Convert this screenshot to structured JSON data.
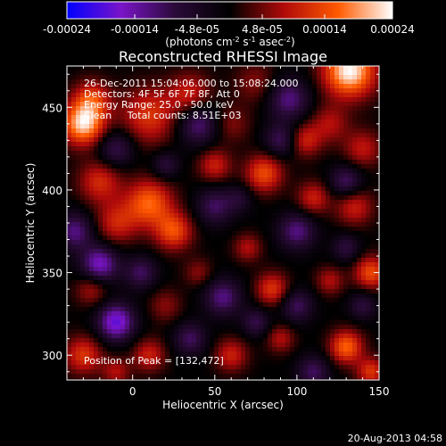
{
  "colorbar": {
    "ticks": [
      "-0.00024",
      "-0.00014",
      "-4.8e-05",
      "4.8e-05",
      "0.00014",
      "0.00024"
    ],
    "tick_values": [
      -0.00024,
      -0.00014,
      -4.8e-05,
      4.8e-05,
      0.00014,
      0.00024
    ],
    "range": [
      -0.00024,
      0.00024
    ],
    "label": "(photons cm^-2 s^-1 asec^-2)",
    "colors": [
      "#0000ff",
      "#7a14c8",
      "#2a0a38",
      "#000000",
      "#b00a0a",
      "#ff5a00",
      "#ffffff"
    ]
  },
  "chart_data": {
    "type": "heatmap",
    "title": "Reconstructed RHESSI Image",
    "xlabel": "Heliocentric X (arcsec)",
    "ylabel": "Heliocentric Y (arcsec)",
    "xlim": [
      -40,
      150
    ],
    "ylim": [
      285,
      475
    ],
    "x_ticks": [
      0,
      50,
      100,
      150
    ],
    "x_tick_labels": [
      "0",
      "50",
      "100",
      "150"
    ],
    "y_ticks": [
      300,
      350,
      400,
      450
    ],
    "y_tick_labels": [
      "300",
      "350",
      "400",
      "450"
    ],
    "grid": false,
    "info_lines": [
      "26-Dec-2011 15:04:06.000 to 15:08:24.000",
      "Detectors: 4F 5F 6F 7F 8F, Att 0",
      "Energy Range: 25.0 - 50.0 keV",
      "Clean     Total counts: 8.51E+03"
    ],
    "peak_annotation": "Position of Peak = [132,472]",
    "peak": [
      132,
      472
    ],
    "blobs": [
      [
        132,
        472,
        0.00024,
        11
      ],
      [
        -30,
        440,
        0.00022,
        9
      ],
      [
        -25,
        455,
        0.00012,
        8
      ],
      [
        10,
        445,
        0.00012,
        12
      ],
      [
        35,
        458,
        0.0001,
        9
      ],
      [
        75,
        465,
        6e-05,
        9
      ],
      [
        60,
        440,
        6e-05,
        8
      ],
      [
        120,
        440,
        8e-05,
        8
      ],
      [
        105,
        430,
        0.0001,
        7
      ],
      [
        140,
        425,
        9e-05,
        8
      ],
      [
        -20,
        405,
        0.00011,
        9
      ],
      [
        10,
        392,
        0.00016,
        10
      ],
      [
        -10,
        380,
        0.0001,
        9
      ],
      [
        25,
        375,
        0.00014,
        8
      ],
      [
        50,
        415,
        0.0001,
        7
      ],
      [
        80,
        410,
        0.00014,
        8
      ],
      [
        110,
        395,
        0.0001,
        7
      ],
      [
        135,
        390,
        0.0001,
        8
      ],
      [
        70,
        365,
        8e-05,
        6
      ],
      [
        85,
        340,
        0.00012,
        7
      ],
      [
        120,
        345,
        8e-05,
        6
      ],
      [
        145,
        350,
        0.00014,
        7
      ],
      [
        -25,
        340,
        8e-05,
        7
      ],
      [
        20,
        330,
        6e-05,
        7
      ],
      [
        -30,
        300,
        0.00012,
        8
      ],
      [
        10,
        300,
        0.0001,
        7
      ],
      [
        -10,
        290,
        8e-05,
        6
      ],
      [
        60,
        300,
        0.0001,
        7
      ],
      [
        90,
        310,
        8e-05,
        6
      ],
      [
        130,
        305,
        0.00016,
        7
      ],
      [
        145,
        290,
        0.00012,
        6
      ],
      [
        40,
        350,
        6e-05,
        6
      ],
      [
        40,
        440,
        -0.00012,
        9
      ],
      [
        95,
        455,
        -0.00012,
        9
      ],
      [
        -10,
        425,
        -0.0001,
        8
      ],
      [
        90,
        430,
        -0.0001,
        7
      ],
      [
        130,
        405,
        -0.00011,
        7
      ],
      [
        -35,
        375,
        -0.00012,
        8
      ],
      [
        50,
        390,
        -0.0001,
        8
      ],
      [
        100,
        375,
        -0.00012,
        8
      ],
      [
        -20,
        355,
        -0.00016,
        8
      ],
      [
        55,
        335,
        -0.00012,
        8
      ],
      [
        100,
        330,
        -0.0001,
        7
      ],
      [
        -10,
        320,
        -0.00018,
        8
      ],
      [
        5,
        350,
        -0.0001,
        7
      ],
      [
        35,
        310,
        -0.0001,
        7
      ],
      [
        75,
        320,
        -9e-05,
        6
      ],
      [
        110,
        290,
        -0.0001,
        7
      ],
      [
        140,
        330,
        -8e-05,
        6
      ],
      [
        130,
        365,
        -8e-05,
        6
      ],
      [
        20,
        415,
        -8e-05,
        6
      ],
      [
        65,
        395,
        -6e-05,
        6
      ]
    ]
  },
  "footer": {
    "date": "20-Aug-2013 04:58"
  }
}
